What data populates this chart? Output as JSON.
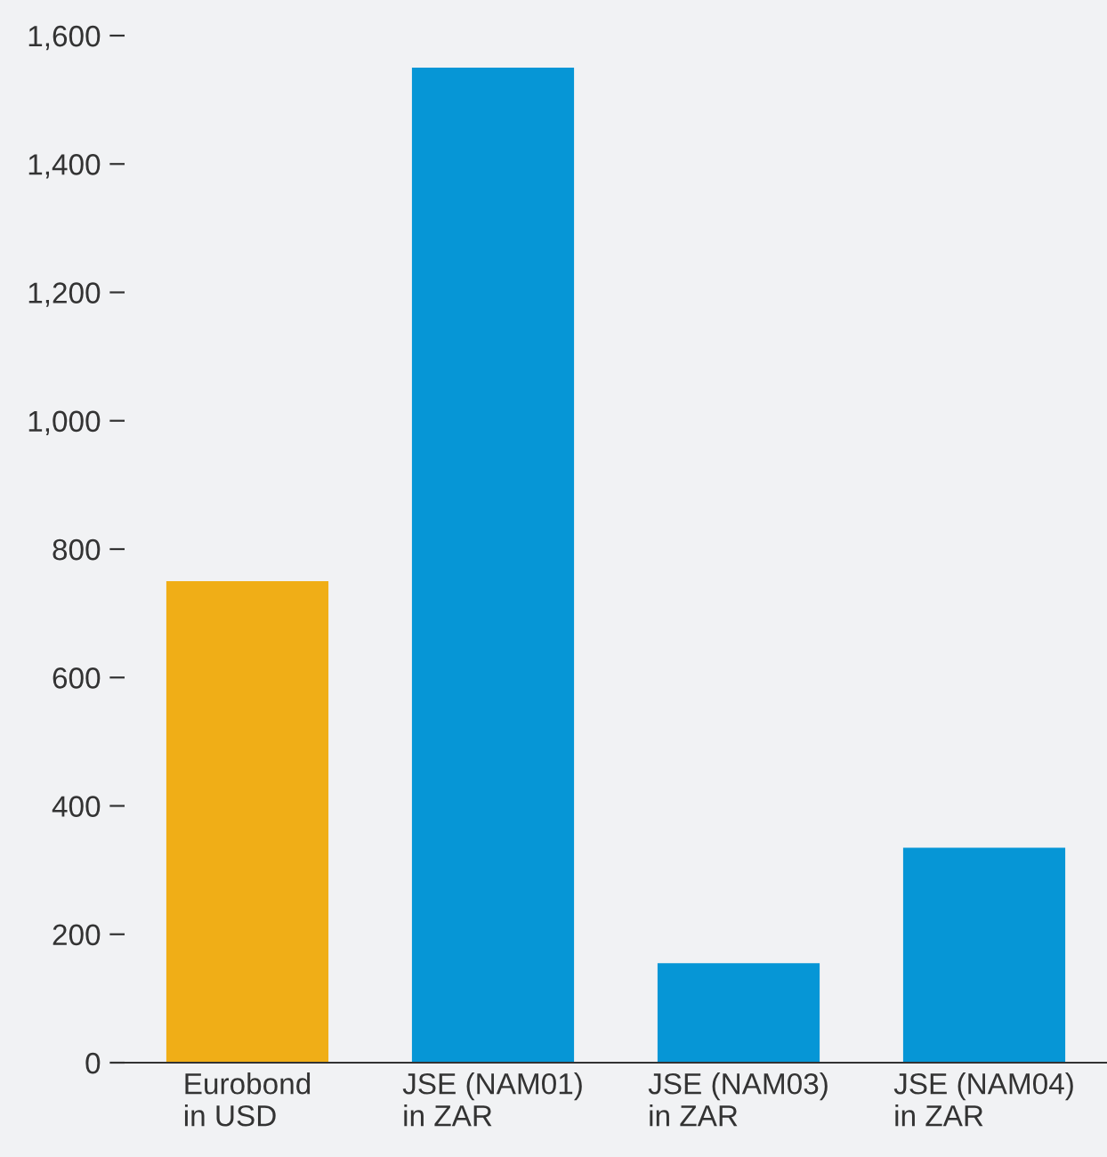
{
  "chart_data": {
    "type": "bar",
    "categories": [
      "Eurobond\nin USD",
      "JSE (NAM01)\nin ZAR",
      "JSE (NAM03)\nin ZAR",
      "JSE (NAM04)\nin ZAR"
    ],
    "values": [
      750,
      1550,
      155,
      335
    ],
    "colors": [
      "#f0ae17",
      "#0696d6",
      "#0696d6",
      "#0696d6"
    ],
    "ylim": [
      0,
      1600
    ],
    "yticks": [
      0,
      {
        "value": 200,
        "label": "200"
      },
      {
        "value": 400,
        "label": "400"
      },
      {
        "value": 600,
        "label": "600"
      },
      {
        "value": 800,
        "label": "800"
      },
      {
        "value": 1000,
        "label": "1,000"
      },
      {
        "value": 1200,
        "label": "1,200"
      },
      {
        "value": 1400,
        "label": "1,400"
      },
      {
        "value": 1600,
        "label": "1,600"
      }
    ],
    "grid": false,
    "legend": false
  }
}
